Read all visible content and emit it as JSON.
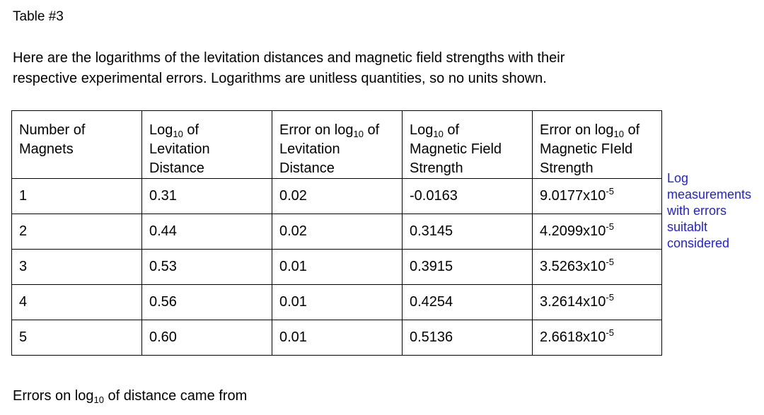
{
  "title": "Table #3",
  "intro_line1": "Here are the logarithms of the levitation distances and magnetic field strengths with their",
  "intro_line2": "respective experimental errors. Logarithms are unitless quantities, so no units shown.",
  "table": {
    "headers": {
      "magnets": [
        "Number of",
        "Magnets"
      ],
      "log_dist": {
        "pre": "Log",
        "sub": "10",
        "post": " of",
        "l2": "Levitation",
        "l3": "Distance"
      },
      "err_dist": {
        "pre": "Error on log",
        "sub": "10",
        "post": " of",
        "l2": "Levitation",
        "l3": "Distance"
      },
      "log_field": {
        "pre": "Log",
        "sub": "10",
        "post": " of",
        "l2": "Magnetic Field",
        "l3": "Strength"
      },
      "err_field": {
        "pre": "Error on log",
        "sub": "10",
        "post": " of",
        "l2": "Magnetic FIeld",
        "l3": "Strength"
      }
    },
    "rows": [
      {
        "n": "1",
        "log_dist": "0.31",
        "err_dist": "0.02",
        "log_field": "-0.0163",
        "err_mant": "9.0177x10",
        "err_exp": "-5"
      },
      {
        "n": "2",
        "log_dist": "0.44",
        "err_dist": "0.02",
        "log_field": "0.3145",
        "err_mant": "4.2099x10",
        "err_exp": "-5"
      },
      {
        "n": "3",
        "log_dist": "0.53",
        "err_dist": "0.01",
        "log_field": "0.3915",
        "err_mant": "3.5263x10",
        "err_exp": "-5"
      },
      {
        "n": "4",
        "log_dist": "0.56",
        "err_dist": "0.01",
        "log_field": "0.4254",
        "err_mant": "3.2614x10",
        "err_exp": "-5"
      },
      {
        "n": "5",
        "log_dist": "0.60",
        "err_dist": "0.01",
        "log_field": "0.5136",
        "err_mant": "2.6618x10",
        "err_exp": "-5"
      }
    ]
  },
  "comment": [
    "Log",
    "measurements",
    "with errors",
    "suitablt",
    "considered"
  ],
  "footer": {
    "pre": "Errors on log",
    "sub": "10",
    "post": " of distance came from"
  },
  "colors": {
    "comment": "#1f1fe0"
  }
}
